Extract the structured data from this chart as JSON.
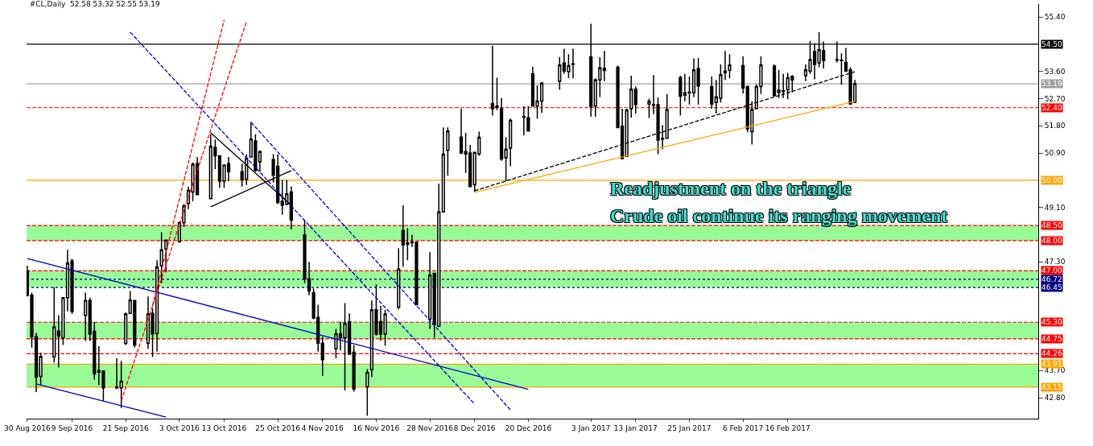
{
  "chart_data": {
    "type": "candlestick",
    "title": "#CL,Daily  52.58 53.32 52.55 53.19",
    "x": [
      "2016-08-30",
      "2016-08-31",
      "2016-09-01",
      "2016-09-02",
      "2016-09-05",
      "2016-09-06",
      "2016-09-07",
      "2016-09-08",
      "2016-09-09",
      "2016-09-12",
      "2016-09-13",
      "2016-09-14",
      "2016-09-15",
      "2016-09-16",
      "2016-09-19",
      "2016-09-20",
      "2016-09-21",
      "2016-09-22",
      "2016-09-23",
      "2016-09-26",
      "2016-09-27",
      "2016-09-28",
      "2016-09-29",
      "2016-09-30",
      "2016-10-03",
      "2016-10-04",
      "2016-10-05",
      "2016-10-06",
      "2016-10-07",
      "2016-10-10",
      "2016-10-11",
      "2016-10-12",
      "2016-10-13",
      "2016-10-14",
      "2016-10-17",
      "2016-10-18",
      "2016-10-19",
      "2016-10-20",
      "2016-10-21",
      "2016-10-24",
      "2016-10-25",
      "2016-10-26",
      "2016-10-27",
      "2016-10-28",
      "2016-10-31",
      "2016-11-01",
      "2016-11-02",
      "2016-11-03",
      "2016-11-04",
      "2016-11-07",
      "2016-11-08",
      "2016-11-09",
      "2016-11-10",
      "2016-11-11",
      "2016-11-14",
      "2016-11-15",
      "2016-11-16",
      "2016-11-17",
      "2016-11-18",
      "2016-11-21",
      "2016-11-22",
      "2016-11-23",
      "2016-11-24",
      "2016-11-25",
      "2016-11-28",
      "2016-11-29",
      "2016-11-30",
      "2016-12-01",
      "2016-12-02",
      "2016-12-05",
      "2016-12-06",
      "2016-12-07",
      "2016-12-08",
      "2016-12-09",
      "2016-12-12",
      "2016-12-13",
      "2016-12-14",
      "2016-12-15",
      "2016-12-16",
      "2016-12-19",
      "2016-12-20",
      "2016-12-21",
      "2016-12-22",
      "2016-12-23",
      "2016-12-27",
      "2016-12-28",
      "2016-12-29",
      "2016-12-30",
      "2017-01-03",
      "2017-01-04",
      "2017-01-05",
      "2017-01-06",
      "2017-01-09",
      "2017-01-10",
      "2017-01-11",
      "2017-01-12",
      "2017-01-13",
      "2017-01-16",
      "2017-01-17",
      "2017-01-18",
      "2017-01-19",
      "2017-01-20",
      "2017-01-23",
      "2017-01-24",
      "2017-01-25",
      "2017-01-26",
      "2017-01-27",
      "2017-01-30",
      "2017-01-31",
      "2017-02-01",
      "2017-02-02",
      "2017-02-03",
      "2017-02-06",
      "2017-02-07",
      "2017-02-08",
      "2017-02-09",
      "2017-02-10",
      "2017-02-13",
      "2017-02-14",
      "2017-02-15",
      "2017-02-16",
      "2017-02-17",
      "2017-02-20",
      "2017-02-21",
      "2017-02-22",
      "2017-02-23",
      "2017-02-24",
      "2017-02-27",
      "2017-02-28",
      "2017-03-01",
      "2017-03-02",
      "2017-03-03"
    ],
    "ohlc": [
      [
        46.99,
        47.17,
        46.15,
        46.19
      ],
      [
        46.19,
        46.28,
        44.46,
        44.82
      ],
      [
        44.82,
        44.95,
        42.99,
        43.49
      ],
      [
        43.51,
        44.29,
        43.22,
        44.17
      ],
      [
        44.15,
        46.46,
        43.97,
        45.15
      ],
      [
        45.01,
        45.53,
        43.8,
        44.84
      ],
      [
        44.79,
        46.11,
        44.55,
        46.11
      ],
      [
        46.11,
        47.7,
        45.66,
        47.26
      ],
      [
        47.33,
        47.4,
        45.57,
        45.66
      ],
      [
        45.53,
        46.28,
        44.68,
        46.02
      ],
      [
        46.02,
        46.11,
        44.68,
        44.91
      ],
      [
        45.0,
        45.31,
        43.4,
        43.59
      ],
      [
        43.7,
        44.51,
        43.22,
        43.65
      ],
      [
        43.68,
        43.71,
        42.69,
        43.13
      ],
      [
        43.13,
        44.11,
        43.09,
        43.15
      ],
      [
        43.13,
        44.02,
        42.46,
        43.35
      ],
      [
        44.6,
        45.62,
        44.55,
        45.57
      ],
      [
        45.59,
        46.33,
        45.57,
        46.03
      ],
      [
        46.02,
        46.02,
        44.46,
        44.55
      ],
      [
        44.6,
        46.15,
        44.42,
        45.57
      ],
      [
        45.59,
        45.75,
        44.15,
        44.91
      ],
      [
        44.93,
        47.35,
        44.33,
        47.13
      ],
      [
        47.17,
        48.28,
        46.59,
        47.7
      ],
      [
        47.73,
        48.02,
        46.95,
        48.02
      ],
      [
        47.97,
        48.64,
        47.93,
        48.59
      ],
      [
        48.59,
        49.21,
        48.46,
        49.14
      ],
      [
        49.23,
        49.79,
        49.04,
        49.66
      ],
      [
        49.61,
        50.59,
        49.3,
        50.53
      ],
      [
        50.55,
        50.77,
        49.52,
        49.52
      ],
      [
        49.39,
        51.52,
        49.39,
        51.12
      ],
      [
        51.08,
        51.35,
        50.37,
        50.81
      ],
      [
        50.81,
        50.81,
        49.75,
        49.97
      ],
      [
        49.97,
        50.5,
        49.75,
        50.5
      ],
      [
        50.55,
        50.77,
        49.97,
        50.28
      ],
      [
        50.28,
        50.55,
        49.79,
        50.01
      ],
      [
        50.03,
        50.86,
        49.84,
        50.72
      ],
      [
        50.77,
        51.92,
        50.77,
        51.36
      ],
      [
        51.3,
        51.52,
        50.28,
        50.32
      ],
      [
        50.61,
        50.99,
        50.28,
        50.95
      ],
      [
        50.68,
        50.86,
        49.92,
        50.17
      ],
      [
        50.46,
        50.86,
        49.21,
        49.26
      ],
      [
        49.3,
        50.01,
        48.86,
        49.17
      ],
      [
        49.2,
        50.01,
        49.17,
        49.55
      ],
      [
        49.61,
        49.79,
        48.37,
        48.68
      ],
      [
        48.19,
        48.68,
        46.59,
        46.73
      ],
      [
        46.73,
        47.3,
        46.19,
        46.33
      ],
      [
        46.28,
        46.42,
        45.4,
        45.44
      ],
      [
        45.46,
        45.88,
        44.33,
        44.61
      ],
      [
        44.61,
        44.82,
        43.53,
        44.06
      ],
      [
        44.42,
        45.08,
        44.11,
        44.92
      ],
      [
        44.92,
        45.32,
        44.37,
        44.79
      ],
      [
        44.79,
        45.93,
        43.04,
        45.26
      ],
      [
        45.32,
        45.59,
        44.24,
        44.24
      ],
      [
        44.31,
        44.55,
        43.0,
        43.09
      ],
      [
        43.16,
        43.75,
        42.2,
        43.64
      ],
      [
        43.73,
        46.02,
        43.49,
        45.71
      ],
      [
        45.71,
        46.55,
        44.86,
        44.91
      ],
      [
        45.32,
        45.84,
        44.69,
        44.91
      ],
      [
        44.91,
        45.71,
        44.53,
        45.57
      ],
      [
        45.8,
        47.75,
        45.73,
        47.06
      ],
      [
        48.34,
        49.17,
        47.13,
        47.86
      ],
      [
        47.93,
        48.41,
        47.35,
        47.88
      ],
      [
        47.95,
        48.19,
        47.79,
        47.93
      ],
      [
        47.95,
        47.95,
        45.88,
        45.88
      ],
      [
        45.4,
        47.62,
        45.08,
        46.86
      ],
      [
        46.92,
        46.92,
        44.79,
        45.22
      ],
      [
        45.17,
        49.88,
        45.17,
        48.95
      ],
      [
        48.95,
        51.75,
        48.95,
        50.86
      ],
      [
        50.99,
        51.75,
        50.15,
        51.63
      ],
      [
        51.43,
        52.37,
        50.86,
        50.9
      ],
      [
        50.95,
        51.57,
        50.24,
        50.87
      ],
      [
        50.9,
        51.17,
        49.79,
        49.79
      ],
      [
        49.85,
        50.92,
        49.61,
        50.92
      ],
      [
        50.87,
        51.61,
        50.81,
        51.42
      ],
      [
        52.54,
        54.45,
        52.14,
        52.37
      ],
      [
        52.45,
        53.39,
        52.32,
        52.41
      ],
      [
        52.37,
        52.72,
        50.64,
        50.7
      ],
      [
        50.74,
        51.43,
        49.97,
        51.03
      ],
      [
        51.06,
        52.04,
        50.46,
        51.98
      ],
      [
        52.11,
        52.45,
        51.48,
        52.09
      ],
      [
        52.07,
        52.45,
        51.61,
        51.63
      ],
      [
        53.52,
        53.76,
        52.45,
        52.45
      ],
      [
        52.45,
        53.14,
        52.04,
        52.62
      ],
      [
        52.62,
        53.25,
        52.23,
        53.21
      ],
      [
        53.27,
        54.08,
        52.99,
        53.81
      ],
      [
        53.88,
        54.35,
        53.52,
        53.61
      ],
      [
        53.59,
        54.17,
        53.37,
        53.79
      ],
      [
        53.83,
        54.35,
        53.37,
        53.85
      ],
      [
        54.08,
        55.18,
        52.1,
        52.43
      ],
      [
        52.45,
        53.37,
        52.1,
        53.32
      ],
      [
        53.32,
        54.07,
        52.75,
        53.72
      ],
      [
        53.7,
        54.28,
        53.28,
        53.63
      ],
      [
        53.74,
        53.79,
        51.72,
        51.74
      ],
      [
        51.79,
        52.37,
        50.68,
        50.72
      ],
      [
        50.79,
        52.37,
        50.77,
        52.32
      ],
      [
        52.37,
        53.46,
        52.07,
        53.01
      ],
      [
        53.01,
        53.1,
        52.21,
        52.5
      ],
      [
        52.52,
        52.7,
        52.06,
        52.61
      ],
      [
        52.5,
        53.48,
        52.19,
        52.48
      ],
      [
        52.5,
        52.74,
        50.86,
        51.33
      ],
      [
        51.36,
        51.83,
        51.03,
        51.38
      ],
      [
        51.39,
        52.85,
        51.39,
        52.34
      ],
      [
        53.39,
        53.46,
        52.14,
        52.78
      ],
      [
        52.81,
        53.52,
        52.61,
        52.89
      ],
      [
        52.91,
        53.43,
        52.5,
        52.89
      ],
      [
        52.9,
        54.03,
        52.75,
        53.65
      ],
      [
        53.69,
        54.04,
        52.5,
        53.12
      ],
      [
        53.1,
        53.43,
        52.37,
        52.52
      ],
      [
        52.57,
        53.32,
        52.21,
        52.75
      ],
      [
        52.71,
        53.83,
        52.57,
        53.49
      ],
      [
        53.55,
        54.28,
        53.32,
        53.61
      ],
      [
        53.64,
        54.17,
        53.37,
        53.81
      ],
      [
        53.79,
        54.1,
        52.87,
        53.05
      ],
      [
        53.1,
        53.14,
        51.59,
        51.7
      ],
      [
        51.61,
        52.61,
        51.18,
        52.34
      ],
      [
        52.37,
        53.17,
        52.37,
        53.1
      ],
      [
        53.1,
        54.1,
        52.85,
        53.81
      ],
      [
        53.78,
        53.83,
        52.77,
        52.8
      ],
      [
        52.9,
        53.65,
        52.72,
        52.98
      ],
      [
        52.96,
        53.52,
        52.72,
        52.93
      ],
      [
        52.99,
        53.55,
        52.68,
        53.39
      ],
      [
        53.43,
        53.48,
        52.9,
        53.32
      ],
      [
        53.46,
        53.83,
        53.28,
        53.65
      ],
      [
        53.61,
        54.61,
        53.52,
        53.99
      ],
      [
        54.26,
        54.54,
        53.34,
        53.83
      ],
      [
        53.88,
        54.9,
        53.74,
        54.32
      ],
      [
        54.29,
        54.59,
        53.7,
        53.96
      ],
      [
        53.99,
        54.59,
        53.9,
        53.98
      ],
      [
        53.97,
        54.2,
        53.16,
        53.96
      ],
      [
        53.9,
        54.38,
        53.58,
        53.61
      ],
      [
        53.65,
        53.74,
        52.5,
        52.52
      ],
      [
        52.58,
        53.32,
        52.55,
        53.19
      ]
    ],
    "xticks": [
      {
        "value": "2016-08-30",
        "label": "30 Aug 2016"
      },
      {
        "value": "2016-09-09",
        "label": "9 Sep 2016"
      },
      {
        "value": "2016-09-21",
        "label": "21 Sep 2016"
      },
      {
        "value": "2016-10-03",
        "label": "3 Oct 2016"
      },
      {
        "value": "2016-10-13",
        "label": "13 Oct 2016"
      },
      {
        "value": "2016-10-25",
        "label": "25 Oct 2016"
      },
      {
        "value": "2016-11-04",
        "label": "4 Nov 2016"
      },
      {
        "value": "2016-11-16",
        "label": "16 Nov 2016"
      },
      {
        "value": "2016-11-28",
        "label": "28 Nov 2016"
      },
      {
        "value": "2016-12-08",
        "label": "8 Dec 2016"
      },
      {
        "value": "2016-12-20",
        "label": "20 Dec 2016"
      },
      {
        "value": "2017-01-03",
        "label": "3 Jan 2017"
      },
      {
        "value": "2017-01-13",
        "label": "13 Jan 2017"
      },
      {
        "value": "2017-01-25",
        "label": "25 Jan 2017"
      },
      {
        "value": "2017-02-06",
        "label": "6 Feb 2017"
      },
      {
        "value": "2017-02-16",
        "label": "16 Feb 2017"
      }
    ],
    "xlim": [
      "2016-08-29T20:00",
      "2017-04-13"
    ],
    "ylim": [
      42.11,
      55.83
    ],
    "yticks": [
      {
        "value": 42.8,
        "label": "42.80"
      },
      {
        "value": 43.7,
        "label": "43.70"
      },
      {
        "value": 47.3,
        "label": "47.30"
      },
      {
        "value": 49.1,
        "label": "49.10"
      },
      {
        "value": 50.9,
        "label": "50.90"
      },
      {
        "value": 51.8,
        "label": "51.80"
      },
      {
        "value": 52.7,
        "label": "52.70"
      },
      {
        "value": 53.6,
        "label": "53.60"
      },
      {
        "value": 55.4,
        "label": "55.40"
      }
    ],
    "bands": [
      {
        "axis": "y",
        "from": 48.0,
        "to": 48.5,
        "label": null,
        "color": "#98fb98"
      },
      {
        "axis": "y",
        "from": 46.45,
        "to": 47.0,
        "label": null,
        "color": "#98fb98"
      },
      {
        "axis": "y",
        "from": 44.75,
        "to": 45.3,
        "label": null,
        "color": "#98fb98"
      },
      {
        "axis": "y",
        "from": 43.15,
        "to": 43.91,
        "label": null,
        "color": "#98fb98"
      }
    ],
    "ref_lines": [
      {
        "axis": "y",
        "value": 54.5,
        "label": "54.50",
        "color": "#000000",
        "line_style": "solid"
      },
      {
        "axis": "y",
        "value": 53.19,
        "label": "53.19",
        "color": "#a0a0a0",
        "line_style": "solid"
      },
      {
        "axis": "y",
        "value": 52.4,
        "label": "52.40",
        "color": "#ff0000",
        "line_style": "dashed"
      },
      {
        "axis": "y",
        "value": 50.0,
        "label": "50.00",
        "color": "#ffa500",
        "line_style": "solid"
      },
      {
        "axis": "y",
        "value": 48.5,
        "label": "48.50",
        "color": "#ff0000",
        "line_style": "dashed"
      },
      {
        "axis": "y",
        "value": 48.0,
        "label": "48.00",
        "color": "#ff0000",
        "line_style": "dashed"
      },
      {
        "axis": "y",
        "value": 47.0,
        "label": "47.00",
        "color": "#ff0000",
        "line_style": "dashed"
      },
      {
        "axis": "y",
        "value": 46.72,
        "label": "46.72",
        "color": "#000080",
        "line_style": "dotted"
      },
      {
        "axis": "y",
        "value": 46.45,
        "label": "46.45",
        "color": "#000080",
        "line_style": "dotted"
      },
      {
        "axis": "y",
        "value": 45.3,
        "label": "45.30",
        "color": "#ff0000",
        "line_style": "dashed"
      },
      {
        "axis": "y",
        "value": 44.75,
        "label": "44.75",
        "color": "#ff0000",
        "line_style": "dashed"
      },
      {
        "axis": "y",
        "value": 44.26,
        "label": "44.26",
        "color": "#ff0000",
        "line_style": "dashed"
      },
      {
        "axis": "y",
        "value": 43.91,
        "label": "43.91",
        "color": "#ffa500",
        "line_style": "solid"
      },
      {
        "axis": "y",
        "value": 43.15,
        "label": "43.15",
        "color": "#ffa500",
        "line_style": "solid"
      }
    ],
    "series": [
      {
        "type": "line",
        "color": "#0000cd",
        "line_style": "solid",
        "x": [
          "2016-08-30",
          "2016-12-20"
        ],
        "values": [
          47.41,
          43.08
        ]
      },
      {
        "type": "line",
        "color": "#0000cd",
        "line_style": "solid",
        "x": [
          "2016-09-01",
          "2016-09-30"
        ],
        "values": [
          43.26,
          42.16
        ]
      },
      {
        "type": "line",
        "color": "#ff0000",
        "line_style": "dashed",
        "x": [
          "2016-09-20",
          "2016-10-18"
        ],
        "values": [
          42.7,
          55.25
        ]
      },
      {
        "type": "line",
        "color": "#ff0000",
        "line_style": "dashed",
        "x": [
          "2016-09-27",
          "2016-10-13"
        ],
        "values": [
          45.84,
          55.3
        ]
      },
      {
        "type": "line",
        "color": "#0000cd",
        "line_style": "dashed",
        "x": [
          "2016-09-22",
          "2016-12-08"
        ],
        "values": [
          54.9,
          42.59
        ]
      },
      {
        "type": "line",
        "color": "#0000cd",
        "line_style": "dashed",
        "x": [
          "2016-10-19",
          "2016-12-16"
        ],
        "values": [
          51.92,
          42.4
        ]
      },
      {
        "type": "line",
        "color": "#000000",
        "line_style": "dashed",
        "x": [
          "2016-12-08",
          "2017-03-03"
        ],
        "values": [
          49.65,
          53.59
        ]
      },
      {
        "type": "line",
        "color": "#ffa500",
        "line_style": "solid",
        "x": [
          "2016-12-08",
          "2017-03-03"
        ],
        "values": [
          49.6,
          52.61
        ]
      },
      {
        "type": "line",
        "color": "#000000",
        "line_style": "solid",
        "x": [
          "2016-10-10",
          "2016-10-28"
        ],
        "values": [
          51.57,
          49.17
        ]
      },
      {
        "type": "line",
        "color": "#000000",
        "line_style": "solid",
        "x": [
          "2016-10-10",
          "2016-10-28"
        ],
        "values": [
          49.12,
          50.32
        ]
      }
    ],
    "annotations": [
      "Readjustment on the triangle",
      "Crude oil continue its ranging movement"
    ]
  }
}
